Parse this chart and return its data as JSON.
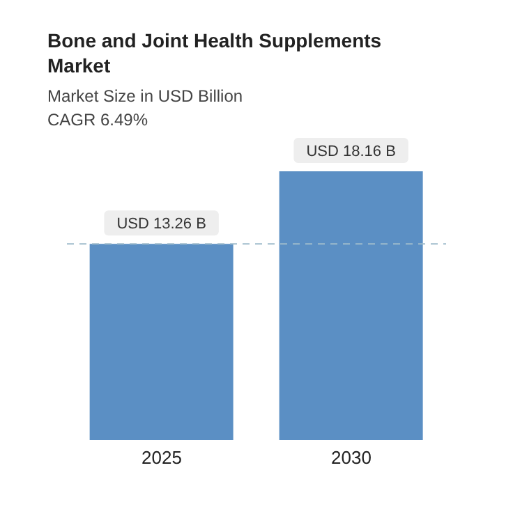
{
  "chart_data": {
    "type": "bar",
    "title": "Bone and Joint Health Supplements Market",
    "subtitle": "Market Size in USD Billion",
    "annotations": [
      "CAGR 6.49%"
    ],
    "categories": [
      "2025",
      "2030"
    ],
    "values": [
      13.26,
      18.16
    ],
    "value_labels": [
      "USD 13.26 B",
      "USD 18.16 B"
    ],
    "color": "#5b8fc4",
    "ref_lines": [
      {
        "axis": "y",
        "value": 13.26,
        "color": "#9fbccb",
        "line_style": "dashed"
      }
    ]
  }
}
